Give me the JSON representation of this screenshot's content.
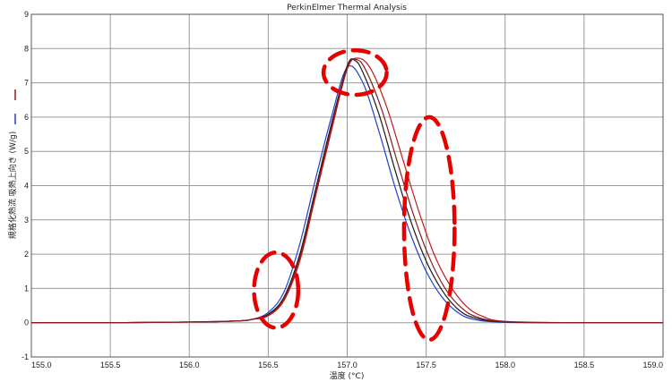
{
  "chart_data": {
    "type": "line",
    "title": "PerkinElmer Thermal Analysis",
    "xlabel": "温度 (°C)",
    "ylabel": "規格化熱流 吸熱上向き (W/g)",
    "xlim": [
      155.0,
      159.0
    ],
    "ylim": [
      -1,
      9
    ],
    "x_ticks": [
      155.0,
      155.5,
      156.0,
      156.5,
      157.0,
      157.5,
      158.0,
      158.5,
      159.0
    ],
    "x_tick_labels": [
      "155.0",
      "155.5",
      "156.0",
      "156.5",
      "157.0",
      "157.5",
      "158.0",
      "158.5",
      "159.0"
    ],
    "y_ticks": [
      -1,
      0,
      1,
      2,
      3,
      4,
      5,
      6,
      7,
      8,
      9
    ],
    "y_tick_labels": [
      "-1",
      "0",
      "1",
      "2",
      "3",
      "4",
      "5",
      "6",
      "7",
      "8",
      "9"
    ],
    "grid": true,
    "legend": "left-side color marks",
    "series": [
      {
        "color": "#1f3fd0",
        "points": [
          [
            155.0,
            0.0
          ],
          [
            155.5,
            0.0
          ],
          [
            156.0,
            0.02
          ],
          [
            156.3,
            0.05
          ],
          [
            156.4,
            0.1
          ],
          [
            156.5,
            0.3
          ],
          [
            156.6,
            0.9
          ],
          [
            156.7,
            2.3
          ],
          [
            156.8,
            4.2
          ],
          [
            156.9,
            6.0
          ],
          [
            157.0,
            7.45
          ],
          [
            157.1,
            7.0
          ],
          [
            157.2,
            5.6
          ],
          [
            157.3,
            4.0
          ],
          [
            157.4,
            2.6
          ],
          [
            157.5,
            1.5
          ],
          [
            157.6,
            0.75
          ],
          [
            157.7,
            0.3
          ],
          [
            157.8,
            0.1
          ],
          [
            158.0,
            0.01
          ],
          [
            158.5,
            0.0
          ],
          [
            159.0,
            0.0
          ]
        ]
      },
      {
        "color": "#1a1a1a",
        "points": [
          [
            155.0,
            0.0
          ],
          [
            155.5,
            0.0
          ],
          [
            156.0,
            0.02
          ],
          [
            156.3,
            0.05
          ],
          [
            156.4,
            0.1
          ],
          [
            156.5,
            0.25
          ],
          [
            156.6,
            0.75
          ],
          [
            156.7,
            2.0
          ],
          [
            156.8,
            3.9
          ],
          [
            156.9,
            5.8
          ],
          [
            157.0,
            7.5
          ],
          [
            157.05,
            7.65
          ],
          [
            157.1,
            7.3
          ],
          [
            157.2,
            6.1
          ],
          [
            157.3,
            4.5
          ],
          [
            157.4,
            3.0
          ],
          [
            157.5,
            1.8
          ],
          [
            157.6,
            0.95
          ],
          [
            157.7,
            0.4
          ],
          [
            157.8,
            0.15
          ],
          [
            158.0,
            0.02
          ],
          [
            158.5,
            0.0
          ],
          [
            159.0,
            0.0
          ]
        ]
      },
      {
        "color": "#c41a1a",
        "points": [
          [
            155.0,
            0.0
          ],
          [
            155.5,
            0.0
          ],
          [
            156.0,
            0.02
          ],
          [
            156.3,
            0.05
          ],
          [
            156.4,
            0.1
          ],
          [
            156.5,
            0.2
          ],
          [
            156.6,
            0.65
          ],
          [
            156.7,
            1.8
          ],
          [
            156.8,
            3.7
          ],
          [
            156.9,
            5.6
          ],
          [
            157.0,
            7.4
          ],
          [
            157.07,
            7.72
          ],
          [
            157.15,
            7.4
          ],
          [
            157.25,
            6.3
          ],
          [
            157.35,
            4.8
          ],
          [
            157.45,
            3.3
          ],
          [
            157.55,
            2.0
          ],
          [
            157.65,
            1.1
          ],
          [
            157.75,
            0.5
          ],
          [
            157.85,
            0.2
          ],
          [
            158.0,
            0.04
          ],
          [
            158.5,
            0.0
          ],
          [
            159.0,
            0.0
          ]
        ]
      },
      {
        "color": "#8b1a1a",
        "points": [
          [
            155.0,
            0.0
          ],
          [
            155.5,
            0.0
          ],
          [
            156.0,
            0.02
          ],
          [
            156.3,
            0.05
          ],
          [
            156.4,
            0.1
          ],
          [
            156.5,
            0.22
          ],
          [
            156.6,
            0.7
          ],
          [
            156.7,
            1.9
          ],
          [
            156.8,
            3.8
          ],
          [
            156.9,
            5.7
          ],
          [
            157.0,
            7.45
          ],
          [
            157.06,
            7.68
          ],
          [
            157.12,
            7.35
          ],
          [
            157.22,
            6.2
          ],
          [
            157.32,
            4.65
          ],
          [
            157.42,
            3.15
          ],
          [
            157.52,
            1.9
          ],
          [
            157.62,
            1.0
          ],
          [
            157.72,
            0.45
          ],
          [
            157.82,
            0.17
          ],
          [
            158.0,
            0.03
          ],
          [
            158.5,
            0.0
          ],
          [
            159.0,
            0.0
          ]
        ]
      }
    ],
    "annotations": [
      {
        "shape": "dashed-ellipse",
        "color": "#e60000",
        "cx": 156.55,
        "cy": 0.95,
        "rx": 0.14,
        "ry": 1.1
      },
      {
        "shape": "dashed-ellipse",
        "color": "#e60000",
        "cx": 157.05,
        "cy": 7.3,
        "rx": 0.2,
        "ry": 0.65
      },
      {
        "shape": "dashed-ellipse",
        "color": "#e60000",
        "cx": 157.52,
        "cy": 2.75,
        "rx": 0.16,
        "ry": 3.25
      }
    ]
  }
}
